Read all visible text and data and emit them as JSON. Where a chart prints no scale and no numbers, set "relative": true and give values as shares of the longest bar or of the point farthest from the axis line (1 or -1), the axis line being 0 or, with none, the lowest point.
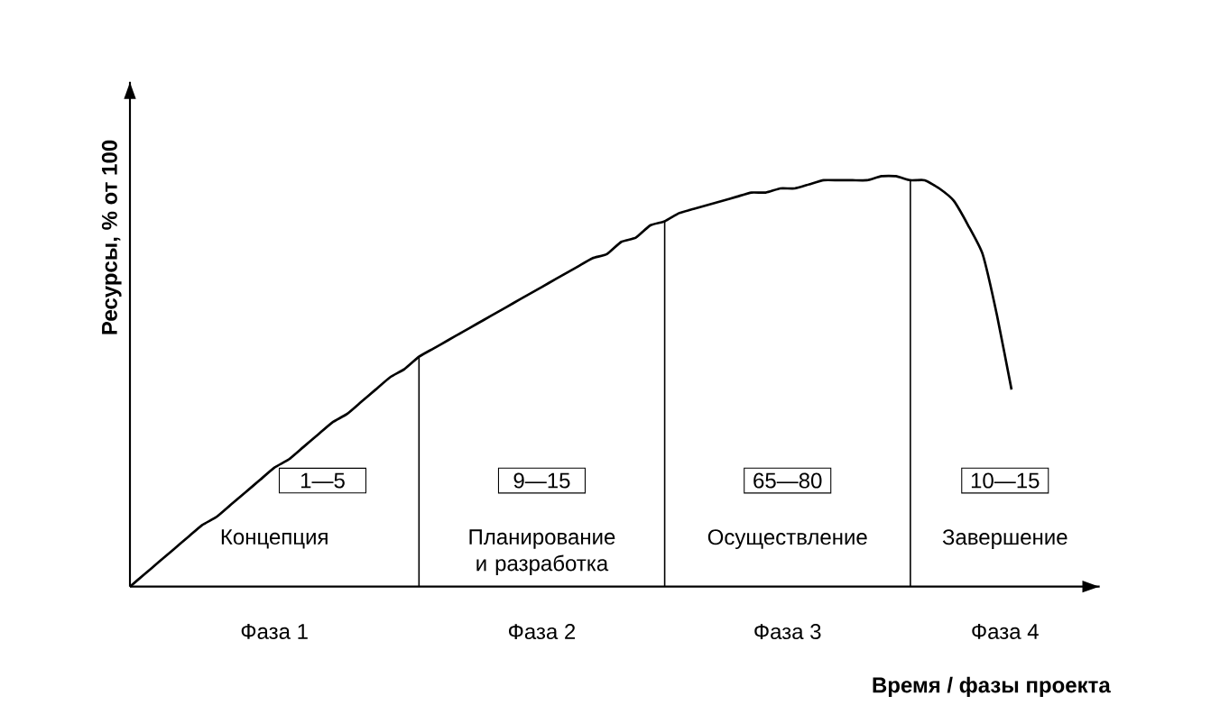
{
  "chart_data": {
    "type": "line",
    "relative": true,
    "ylabel": "Ресурсы, % от 100",
    "xlabel": "Время / фазы проекта",
    "color": "#000000",
    "categories": [
      null,
      null,
      null,
      null,
      null,
      null,
      null,
      null,
      null,
      null,
      null,
      null,
      null,
      null,
      null,
      null,
      null,
      null,
      null,
      null,
      null,
      null,
      null,
      null,
      null,
      null,
      null,
      null,
      null,
      null,
      null,
      null,
      null,
      null,
      null,
      null,
      null,
      null,
      null,
      null,
      null,
      null,
      null,
      null,
      null,
      null,
      null,
      null,
      null,
      null,
      null,
      null,
      null,
      null,
      null,
      null,
      null,
      null,
      null,
      null,
      null,
      null
    ],
    "values": [
      0,
      0.03,
      0.06,
      0.09,
      0.12,
      0.15,
      0.17,
      0.2,
      0.23,
      0.26,
      0.29,
      0.31,
      0.34,
      0.37,
      0.4,
      0.42,
      0.45,
      0.48,
      0.51,
      0.53,
      0.56,
      0.58,
      0.6,
      0.62,
      0.64,
      0.66,
      0.68,
      0.7,
      0.72,
      0.74,
      0.76,
      0.78,
      0.8,
      0.81,
      0.84,
      0.85,
      0.88,
      0.89,
      0.91,
      0.92,
      0.93,
      0.94,
      0.95,
      0.96,
      0.96,
      0.97,
      0.97,
      0.98,
      0.99,
      0.99,
      0.99,
      0.99,
      1,
      1,
      0.99,
      0.99,
      0.97,
      0.94,
      0.88,
      0.81,
      0.66,
      0.48
    ],
    "annotations": [
      "1—5",
      "Концепция",
      "Фаза 1",
      "9—15",
      "Планирование и разработка",
      "Фаза 2",
      "65—80",
      "Осуществление",
      "Фаза 3",
      "10—15",
      "Завершение",
      "Фаза 4"
    ]
  }
}
